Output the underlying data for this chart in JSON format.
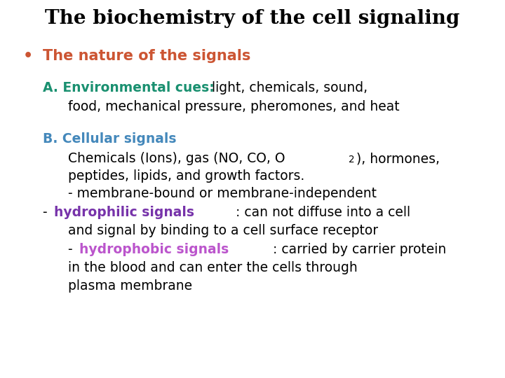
{
  "background_color": "#ffffff",
  "title": "The biochemistry of the cell signaling",
  "title_color": "#000000",
  "title_fontsize": 20,
  "bullet_color": "#cc5533",
  "bullet_text": "The nature of the signals",
  "bullet_fontsize": 15,
  "sec_a_label": "A. Environmental cues:",
  "sec_a_label_color": "#1a9070",
  "sec_a_body1": "  light, chemicals, sound,",
  "sec_a_body2": "food, mechanical pressure, pheromones, and heat",
  "sec_b_label": "B. Cellular signals",
  "sec_b_label_color": "#4488bb",
  "body_fontsize": 13.5,
  "hydrophilic_color": "#7733aa",
  "hydrophobic_color": "#bb55cc"
}
